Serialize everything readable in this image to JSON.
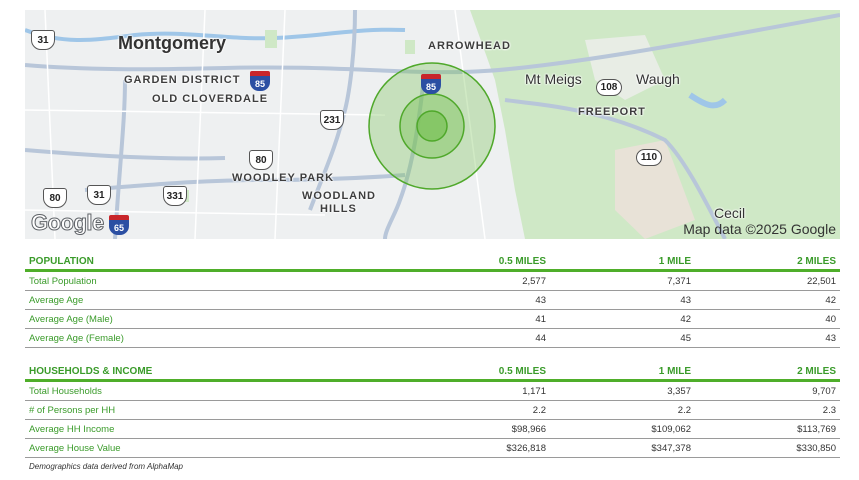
{
  "map": {
    "labels": {
      "montgomery": "Montgomery",
      "garden_district": "GARDEN DISTRICT",
      "old_cloverdale": "OLD CLOVERDALE",
      "woodley_park": "WOODLEY PARK",
      "woodland_hills_1": "WOODLAND",
      "woodland_hills_2": "HILLS",
      "arrowhead": "ARROWHEAD",
      "mt_meigs": "Mt Meigs",
      "waugh": "Waugh",
      "freeport": "FREEPORT",
      "cecil": "Cecil"
    },
    "shields": {
      "us31_top": "31",
      "i85_left": "85",
      "i85_right": "85",
      "us231": "231",
      "us80_mid": "80",
      "us80_left": "80",
      "us31_bottom": "31",
      "us331": "331",
      "i65": "65",
      "r108": "108",
      "r110": "110"
    },
    "google_logo": "Google",
    "credit": "Map data ©2025 Google",
    "colors": {
      "ring_fill": "#7cc35a",
      "ring_stroke": "#4fa82a",
      "park": "#cfe8c6",
      "road": "#b8c6d9"
    }
  },
  "population": {
    "header": [
      "POPULATION",
      "0.5 MILES",
      "1 MILE",
      "2 MILES"
    ],
    "rows": [
      [
        "Total Population",
        "2,577",
        "7,371",
        "22,501"
      ],
      [
        "Average Age",
        "43",
        "43",
        "42"
      ],
      [
        "Average Age (Male)",
        "41",
        "42",
        "40"
      ],
      [
        "Average Age (Female)",
        "44",
        "45",
        "43"
      ]
    ]
  },
  "households": {
    "header": [
      "HOUSEHOLDS & INCOME",
      "0.5 MILES",
      "1 MILE",
      "2 MILES"
    ],
    "rows": [
      [
        "Total Households",
        "1,171",
        "3,357",
        "9,707"
      ],
      [
        "# of Persons per HH",
        "2.2",
        "2.2",
        "2.3"
      ],
      [
        "Average HH Income",
        "$98,966",
        "$109,062",
        "$113,769"
      ],
      [
        "Average House Value",
        "$326,818",
        "$347,378",
        "$330,850"
      ]
    ]
  },
  "footnote": "Demographics data derived from AlphaMap"
}
